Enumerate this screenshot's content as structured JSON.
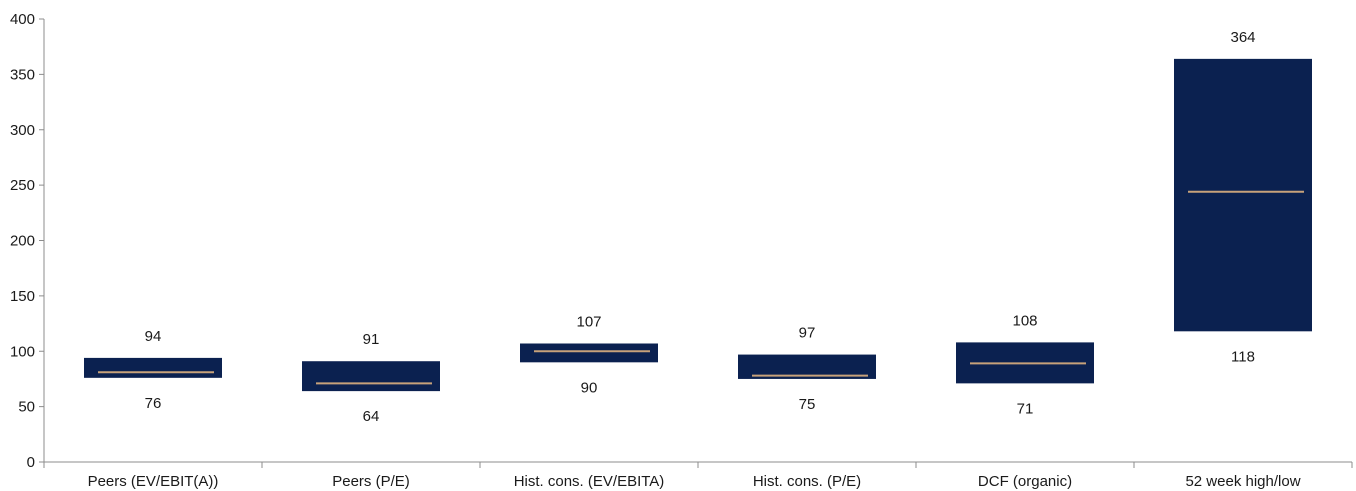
{
  "chart_data": {
    "type": "bar",
    "subtype": "floating-range",
    "title": "",
    "xlabel": "",
    "ylabel": "",
    "ylim": [
      0,
      400
    ],
    "yticks": [
      0,
      50,
      100,
      150,
      200,
      250,
      300,
      350,
      400
    ],
    "grid": false,
    "legend": "none",
    "colors": {
      "box": "#0b2150",
      "midline": "#c8a27a",
      "axis": "#8c8c8c",
      "text": "#1a1a1a"
    },
    "categories": [
      "Peers (EV/EBIT(A))",
      "Peers (P/E)",
      "Hist. cons. (EV/EBITA)",
      "Hist. cons. (P/E)",
      "DCF (organic)",
      "52 week high/low"
    ],
    "ranges": [
      {
        "low": 76,
        "high": 94,
        "mid": 81
      },
      {
        "low": 64,
        "high": 91,
        "mid": 71
      },
      {
        "low": 90,
        "high": 107,
        "mid": 100
      },
      {
        "low": 75,
        "high": 97,
        "mid": 78
      },
      {
        "low": 71,
        "high": 108,
        "mid": 89
      },
      {
        "low": 118,
        "high": 364,
        "mid": 244
      }
    ],
    "high_labels": [
      "94",
      "91",
      "107",
      "97",
      "108",
      "364"
    ],
    "low_labels": [
      "76",
      "64",
      "90",
      "75",
      "71",
      "118"
    ]
  }
}
